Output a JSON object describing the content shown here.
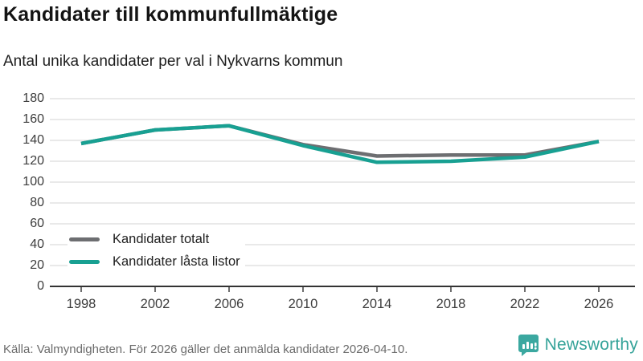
{
  "title": "Kandidater till kommunfullmäktige",
  "subtitle": "Antal unika kandidater per val i Nykvarns kommun",
  "footer": {
    "source": "Källa: Valmyndigheten. För 2026 gäller det anmälda kandidater 2026-04-10.",
    "brand": "Newsworthy"
  },
  "colors": {
    "total": "#6d6e71",
    "locked": "#18a092",
    "grid": "#e2e2e2",
    "axis": "#333333",
    "tick": "#4a4a4a",
    "brand_teal": "#3ba8a0"
  },
  "chart_data": {
    "type": "line",
    "x": [
      1998,
      2002,
      2006,
      2010,
      2014,
      2018,
      2022,
      2026
    ],
    "series": [
      {
        "name": "Kandidater totalt",
        "color_key": "total",
        "values": [
          137,
          150,
          154,
          136,
          125,
          126,
          126,
          139
        ]
      },
      {
        "name": "Kandidater låsta listor",
        "color_key": "locked",
        "values": [
          137,
          150,
          154,
          135,
          119,
          120,
          124,
          139
        ]
      }
    ],
    "ylim": [
      0,
      180
    ],
    "y_ticks": [
      0,
      20,
      40,
      60,
      80,
      100,
      120,
      140,
      160,
      180
    ],
    "x_ticks": [
      1998,
      2002,
      2006,
      2010,
      2014,
      2018,
      2022,
      2026
    ],
    "grid": "horizontal",
    "legend_position": "inside-bottom-left"
  }
}
